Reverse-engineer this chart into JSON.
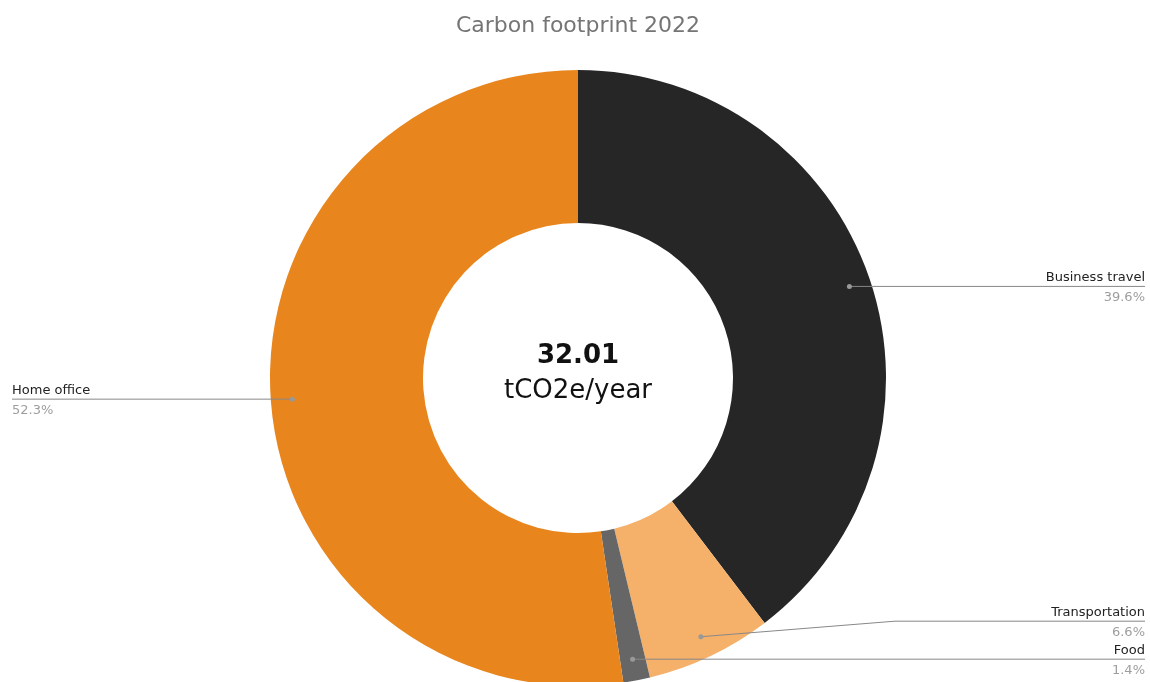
{
  "chart_data": {
    "type": "donut",
    "title": "Carbon footprint 2022",
    "categories": [
      "Business travel",
      "Transportation",
      "Food",
      "Home office"
    ],
    "values": [
      39.6,
      6.6,
      1.4,
      52.3
    ],
    "value_labels": [
      "39.6%",
      "6.6%",
      "1.4%",
      "52.3%"
    ],
    "colors": [
      "#262626",
      "#f5b06a",
      "#666666",
      "#e8851c"
    ],
    "annotations": [
      "32.01",
      "tCO2e/year"
    ],
    "legend": false
  }
}
